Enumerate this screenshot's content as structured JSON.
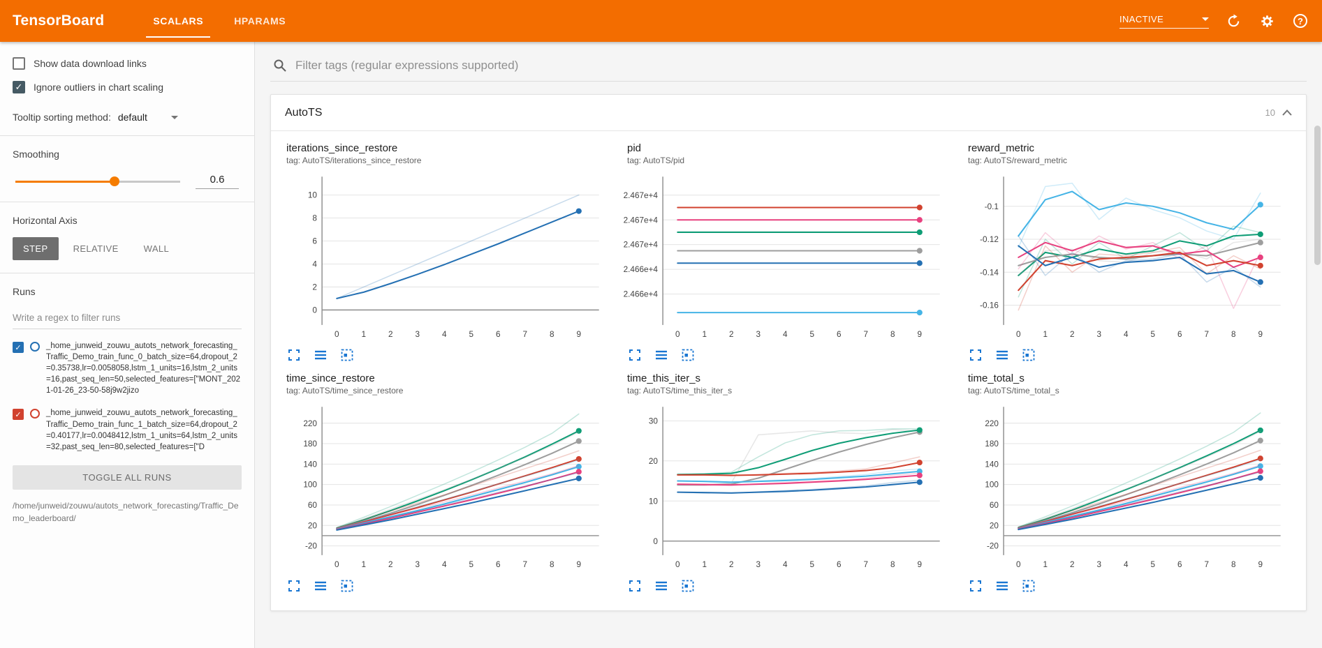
{
  "header": {
    "title": "TensorBoard",
    "tabs": [
      {
        "label": "SCALARS",
        "active": true
      },
      {
        "label": "HPARAMS",
        "active": false
      }
    ],
    "status_dropdown": "INACTIVE",
    "help_glyph": "?"
  },
  "sidebar": {
    "checkboxes": [
      {
        "label": "Show data download links",
        "checked": false
      },
      {
        "label": "Ignore outliers in chart scaling",
        "checked": true
      }
    ],
    "tooltip_sorting": {
      "label": "Tooltip sorting method:",
      "value": "default"
    },
    "smoothing": {
      "label": "Smoothing",
      "value": "0.6",
      "percent": 60
    },
    "horizontal_axis": {
      "label": "Horizontal Axis",
      "options": [
        "STEP",
        "RELATIVE",
        "WALL"
      ],
      "selected": "STEP"
    },
    "runs": {
      "label": "Runs",
      "filter_placeholder": "Write a regex to filter runs",
      "items": [
        {
          "color": "#2470b3",
          "checked": true,
          "name": "_home_junweid_zouwu_autots_network_forecasting_Traffic_Demo_train_func_0_batch_size=64,dropout_2=0.35738,lr=0.0058058,lstm_1_units=16,lstm_2_units=16,past_seq_len=50,selected_features=[\"MONT_2021-01-26_23-50-58j9w2jizo"
        },
        {
          "color": "#d1422f",
          "checked": true,
          "name": "_home_junweid_zouwu_autots_network_forecasting_Traffic_Demo_train_func_1_batch_size=64,dropout_2=0.40177,lr=0.0048412,lstm_1_units=64,lstm_2_units=32,past_seq_len=80,selected_features=[\"D"
        }
      ],
      "toggle_all_label": "TOGGLE ALL RUNS",
      "logdir": "/home/junweid/zouwu/autots_network_forecasting/Traffic_Demo_leaderboard/"
    }
  },
  "main": {
    "filter_placeholder": "Filter tags (regular expressions supported)",
    "card": {
      "title": "AutoTS",
      "count": "10"
    }
  },
  "palette": {
    "blue": "#2470b3",
    "red": "#d1422f",
    "cyan": "#45b4e6",
    "pink": "#e8417f",
    "green": "#0f9d76",
    "gray": "#9e9e9e",
    "icon_blue": "#1976d2"
  },
  "chart_data": [
    {
      "type": "line",
      "title": "iterations_since_restore",
      "tag": "tag: AutoTS/iterations_since_restore",
      "xlim": [
        -0.55,
        9.75
      ],
      "ylim": [
        -1.3,
        11.6
      ],
      "xticks": [
        0,
        1,
        2,
        3,
        4,
        5,
        6,
        7,
        8,
        9
      ],
      "yticks": [
        {
          "v": 0,
          "l": "0"
        },
        {
          "v": 2,
          "l": "2"
        },
        {
          "v": 4,
          "l": "4"
        },
        {
          "v": 6,
          "l": "6"
        },
        {
          "v": 8,
          "l": "8"
        },
        {
          "v": 10,
          "l": "10"
        }
      ],
      "series": [
        {
          "name": "all_runs",
          "color": "#2470b3",
          "raw": [
            1,
            2,
            3,
            4,
            5,
            6,
            7,
            8,
            9,
            10
          ],
          "smooth": [
            1,
            1.55,
            2.3,
            3.1,
            3.95,
            4.85,
            5.75,
            6.7,
            7.65,
            8.6
          ]
        }
      ]
    },
    {
      "type": "line",
      "title": "pid",
      "tag": "tag: AutoTS/pid",
      "xlim": [
        -0.55,
        9.75
      ],
      "ylim": [
        24661.5,
        24673.5
      ],
      "xticks": [
        0,
        1,
        2,
        3,
        4,
        5,
        6,
        7,
        8,
        9
      ],
      "yticks": [
        {
          "v": 24672,
          "l": "2.467e+4"
        },
        {
          "v": 24670,
          "l": "2.467e+4"
        },
        {
          "v": 24668,
          "l": "2.467e+4"
        },
        {
          "v": 24666,
          "l": "2.466e+4"
        },
        {
          "v": 24664,
          "l": "2.466e+4"
        }
      ],
      "series": [
        {
          "name": "run_red",
          "color": "#d1422f",
          "const": 24671
        },
        {
          "name": "run_pink",
          "color": "#e8417f",
          "const": 24670
        },
        {
          "name": "run_green",
          "color": "#0f9d76",
          "const": 24669
        },
        {
          "name": "run_gray",
          "color": "#9e9e9e",
          "const": 24667.5
        },
        {
          "name": "run_blue",
          "color": "#2470b3",
          "const": 24666.5
        },
        {
          "name": "run_cyan",
          "color": "#45b4e6",
          "const": 24662.5
        }
      ]
    },
    {
      "type": "line",
      "title": "reward_metric",
      "tag": "tag: AutoTS/reward_metric",
      "xlim": [
        -0.55,
        9.75
      ],
      "ylim": [
        -0.172,
        -0.082
      ],
      "xticks": [
        0,
        1,
        2,
        3,
        4,
        5,
        6,
        7,
        8,
        9
      ],
      "yticks": [
        {
          "v": -0.1,
          "l": "-0.1"
        },
        {
          "v": -0.12,
          "l": "-0.12"
        },
        {
          "v": -0.14,
          "l": "-0.14"
        },
        {
          "v": -0.16,
          "l": "-0.16"
        }
      ],
      "series": [
        {
          "name": "run_cyan",
          "color": "#45b4e6",
          "raw": [
            -0.125,
            -0.088,
            -0.086,
            -0.108,
            -0.095,
            -0.102,
            -0.107,
            -0.115,
            -0.12,
            -0.092
          ],
          "smooth": [
            -0.118,
            -0.096,
            -0.091,
            -0.102,
            -0.098,
            -0.1,
            -0.104,
            -0.11,
            -0.114,
            -0.099
          ]
        },
        {
          "name": "run_green",
          "color": "#0f9d76",
          "raw": [
            -0.155,
            -0.12,
            -0.135,
            -0.122,
            -0.132,
            -0.124,
            -0.116,
            -0.127,
            -0.112,
            -0.116
          ],
          "smooth": [
            -0.142,
            -0.128,
            -0.131,
            -0.126,
            -0.129,
            -0.127,
            -0.121,
            -0.124,
            -0.118,
            -0.117
          ]
        },
        {
          "name": "run_gray",
          "color": "#9e9e9e",
          "raw": [
            -0.142,
            -0.127,
            -0.126,
            -0.133,
            -0.134,
            -0.128,
            -0.127,
            -0.132,
            -0.122,
            -0.12
          ],
          "smooth": [
            -0.136,
            -0.131,
            -0.129,
            -0.131,
            -0.132,
            -0.13,
            -0.129,
            -0.13,
            -0.126,
            -0.122
          ]
        },
        {
          "name": "run_pink",
          "color": "#e8417f",
          "raw": [
            -0.138,
            -0.116,
            -0.13,
            -0.118,
            -0.126,
            -0.122,
            -0.132,
            -0.124,
            -0.162,
            -0.128
          ],
          "smooth": [
            -0.131,
            -0.122,
            -0.127,
            -0.121,
            -0.125,
            -0.124,
            -0.129,
            -0.127,
            -0.137,
            -0.131
          ]
        },
        {
          "name": "run_red",
          "color": "#d1422f",
          "raw": [
            -0.163,
            -0.124,
            -0.14,
            -0.129,
            -0.13,
            -0.128,
            -0.125,
            -0.141,
            -0.13,
            -0.138
          ],
          "smooth": [
            -0.151,
            -0.133,
            -0.136,
            -0.132,
            -0.131,
            -0.13,
            -0.128,
            -0.136,
            -0.133,
            -0.136
          ]
        },
        {
          "name": "run_blue",
          "color": "#2470b3",
          "raw": [
            -0.118,
            -0.142,
            -0.128,
            -0.14,
            -0.133,
            -0.132,
            -0.129,
            -0.146,
            -0.137,
            -0.149
          ],
          "smooth": [
            -0.124,
            -0.136,
            -0.131,
            -0.137,
            -0.134,
            -0.133,
            -0.131,
            -0.141,
            -0.139,
            -0.146
          ]
        }
      ]
    },
    {
      "type": "line",
      "title": "time_since_restore",
      "tag": "tag: AutoTS/time_since_restore",
      "xlim": [
        -0.55,
        9.75
      ],
      "ylim": [
        -38,
        252
      ],
      "xticks": [
        0,
        1,
        2,
        3,
        4,
        5,
        6,
        7,
        8,
        9
      ],
      "yticks": [
        {
          "v": 220,
          "l": "220"
        },
        {
          "v": 180,
          "l": "180"
        },
        {
          "v": 140,
          "l": "140"
        },
        {
          "v": 100,
          "l": "100"
        },
        {
          "v": 60,
          "l": "60"
        },
        {
          "v": 20,
          "l": "20"
        },
        {
          "v": -20,
          "l": "-20"
        }
      ],
      "series": [
        {
          "name": "run_green",
          "color": "#0f9d76",
          "raw": [
            16,
            36,
            57,
            79,
            101,
            124,
            148,
            173,
            200,
            238
          ],
          "smooth": [
            15,
            31,
            49,
            68,
            88,
            109,
            131,
            154,
            179,
            205
          ]
        },
        {
          "name": "run_gray",
          "color": "#9e9e9e",
          "raw": [
            15,
            33,
            52,
            71,
            90,
            110,
            131,
            153,
            176,
            203
          ],
          "smooth": [
            14,
            28,
            44,
            61,
            79,
            98,
            118,
            139,
            161,
            185
          ]
        },
        {
          "name": "run_red",
          "color": "#d1422f",
          "raw": [
            15,
            31,
            48,
            64,
            80,
            97,
            114,
            131,
            148,
            166
          ],
          "smooth": [
            14,
            27,
            41,
            55,
            70,
            85,
            101,
            117,
            133,
            150
          ]
        },
        {
          "name": "run_cyan",
          "color": "#45b4e6",
          "raw": [
            14,
            29,
            43,
            57,
            71,
            86,
            101,
            116,
            131,
            148
          ],
          "smooth": [
            13,
            25,
            37,
            49,
            62,
            76,
            90,
            104,
            119,
            135
          ]
        },
        {
          "name": "run_pink",
          "color": "#e8417f",
          "raw": [
            13,
            27,
            40,
            53,
            66,
            79,
            93,
            107,
            121,
            137
          ],
          "smooth": [
            12,
            23,
            34,
            46,
            58,
            70,
            83,
            96,
            110,
            125
          ]
        },
        {
          "name": "run_blue",
          "color": "#2470b3",
          "raw": [
            12,
            24,
            36,
            48,
            60,
            72,
            85,
            97,
            110,
            123
          ],
          "smooth": [
            11,
            21,
            31,
            42,
            53,
            64,
            76,
            88,
            100,
            112
          ]
        }
      ]
    },
    {
      "type": "line",
      "title": "time_this_iter_s",
      "tag": "tag: AutoTS/time_this_iter_s",
      "xlim": [
        -0.55,
        9.75
      ],
      "ylim": [
        -3.5,
        33.5
      ],
      "xticks": [
        0,
        1,
        2,
        3,
        4,
        5,
        6,
        7,
        8,
        9
      ],
      "yticks": [
        {
          "v": 30,
          "l": "30"
        },
        {
          "v": 20,
          "l": "20"
        },
        {
          "v": 10,
          "l": "10"
        },
        {
          "v": 0,
          "l": "0"
        }
      ],
      "series": [
        {
          "name": "run_gray",
          "color": "#9e9e9e",
          "raw": [
            14,
            14,
            14.5,
            26.5,
            27,
            27.5,
            27,
            26.8,
            27.8,
            27.4
          ],
          "smooth": [
            14,
            14,
            14.2,
            15.7,
            17.9,
            20.1,
            22.2,
            24.1,
            25.8,
            27.2
          ]
        },
        {
          "name": "run_green",
          "color": "#0f9d76",
          "raw": [
            16.6,
            16.8,
            17.2,
            21,
            24.5,
            26.5,
            27.5,
            27.6,
            28,
            28
          ],
          "smooth": [
            16.6,
            16.7,
            16.9,
            18.3,
            20.4,
            22.6,
            24.4,
            25.8,
            26.9,
            27.7
          ]
        },
        {
          "name": "run_red",
          "color": "#d1422f",
          "raw": [
            16.5,
            16.5,
            16.3,
            16.6,
            16.9,
            17.1,
            17.5,
            18,
            19.5,
            21
          ],
          "smooth": [
            16.5,
            16.5,
            16.4,
            16.5,
            16.7,
            16.9,
            17.2,
            17.6,
            18.3,
            19.6
          ]
        },
        {
          "name": "run_cyan",
          "color": "#45b4e6",
          "raw": [
            15,
            14.8,
            14.5,
            15,
            15.3,
            15.6,
            16.1,
            16.6,
            17.5,
            18
          ],
          "smooth": [
            15,
            14.9,
            14.7,
            14.9,
            15.1,
            15.4,
            15.8,
            16.2,
            16.8,
            17.4
          ]
        },
        {
          "name": "run_pink",
          "color": "#e8417f",
          "raw": [
            14.2,
            14,
            13.9,
            14.3,
            14.6,
            14.9,
            15.2,
            15.7,
            16.4,
            16.9
          ],
          "smooth": [
            14.2,
            14.1,
            14,
            14.2,
            14.4,
            14.7,
            15,
            15.4,
            15.9,
            16.4
          ]
        },
        {
          "name": "run_blue",
          "color": "#2470b3",
          "raw": [
            12.2,
            12,
            11.9,
            12.3,
            12.6,
            12.9,
            13.3,
            13.8,
            14.6,
            15.2
          ],
          "smooth": [
            12.2,
            12.1,
            12,
            12.2,
            12.4,
            12.7,
            13.1,
            13.5,
            14.1,
            14.7
          ]
        }
      ]
    },
    {
      "type": "line",
      "title": "time_total_s",
      "tag": "tag: AutoTS/time_total_s",
      "xlim": [
        -0.55,
        9.75
      ],
      "ylim": [
        -38,
        252
      ],
      "xticks": [
        0,
        1,
        2,
        3,
        4,
        5,
        6,
        7,
        8,
        9
      ],
      "yticks": [
        {
          "v": 220,
          "l": "220"
        },
        {
          "v": 180,
          "l": "180"
        },
        {
          "v": 140,
          "l": "140"
        },
        {
          "v": 100,
          "l": "100"
        },
        {
          "v": 60,
          "l": "60"
        },
        {
          "v": 20,
          "l": "20"
        },
        {
          "v": -20,
          "l": "-20"
        }
      ],
      "series": [
        {
          "name": "run_green",
          "color": "#0f9d76",
          "raw": [
            17,
            37,
            58,
            80,
            103,
            126,
            150,
            175,
            202,
            240
          ],
          "smooth": [
            16,
            32,
            50,
            70,
            90,
            111,
            133,
            156,
            180,
            206
          ]
        },
        {
          "name": "run_gray",
          "color": "#9e9e9e",
          "raw": [
            16,
            34,
            53,
            72,
            91,
            111,
            132,
            154,
            177,
            204
          ],
          "smooth": [
            15,
            29,
            45,
            62,
            80,
            99,
            119,
            140,
            162,
            186
          ]
        },
        {
          "name": "run_red",
          "color": "#d1422f",
          "raw": [
            16,
            32,
            49,
            65,
            81,
            98,
            115,
            132,
            149,
            167
          ],
          "smooth": [
            15,
            28,
            42,
            56,
            71,
            86,
            102,
            118,
            134,
            151
          ]
        },
        {
          "name": "run_cyan",
          "color": "#45b4e6",
          "raw": [
            15,
            30,
            44,
            58,
            72,
            87,
            102,
            117,
            132,
            149
          ],
          "smooth": [
            14,
            26,
            38,
            50,
            63,
            77,
            91,
            105,
            120,
            136
          ]
        },
        {
          "name": "run_pink",
          "color": "#e8417f",
          "raw": [
            14,
            28,
            41,
            54,
            67,
            80,
            94,
            108,
            122,
            138
          ],
          "smooth": [
            13,
            24,
            35,
            47,
            59,
            71,
            84,
            97,
            111,
            126
          ]
        },
        {
          "name": "run_blue",
          "color": "#2470b3",
          "raw": [
            13,
            25,
            37,
            49,
            61,
            73,
            86,
            98,
            111,
            124
          ],
          "smooth": [
            12,
            22,
            32,
            43,
            54,
            65,
            77,
            89,
            101,
            113
          ]
        }
      ]
    }
  ]
}
